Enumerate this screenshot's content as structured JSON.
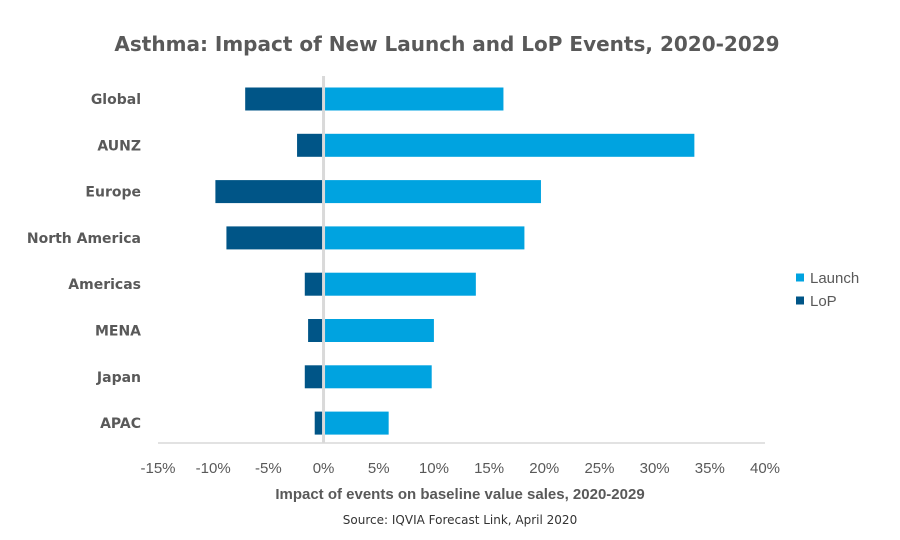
{
  "chart_data": {
    "type": "bar",
    "orientation": "horizontal",
    "stacked": "diverging",
    "title": "Asthma: Impact of New Launch and LoP Events, 2020-2029",
    "xlabel": "Impact of events on baseline value sales, 2020-2029",
    "source": "Source: IQVIA Forecast Link, April 2020",
    "categories": [
      "Global",
      "AUNZ",
      "Europe",
      "North America",
      "Americas",
      "MENA",
      "Japan",
      "APAC"
    ],
    "series": [
      {
        "name": "Launch",
        "color": "#00A3E0",
        "values": [
          16.3,
          33.6,
          19.7,
          18.2,
          13.8,
          10.0,
          9.8,
          5.9
        ]
      },
      {
        "name": "LoP",
        "color": "#005587",
        "values": [
          -7.1,
          -2.4,
          -9.8,
          -8.8,
          -1.7,
          -1.4,
          -1.7,
          -0.8
        ]
      }
    ],
    "xlim": [
      -15,
      40
    ],
    "xticks": [
      -15,
      -10,
      -5,
      0,
      5,
      10,
      15,
      20,
      25,
      30,
      35,
      40
    ],
    "xtick_labels": [
      "-15%",
      "-10%",
      "-5%",
      "0%",
      "5%",
      "10%",
      "15%",
      "20%",
      "25%",
      "30%",
      "35%",
      "40%"
    ],
    "legend_position": "right",
    "grid": false
  }
}
